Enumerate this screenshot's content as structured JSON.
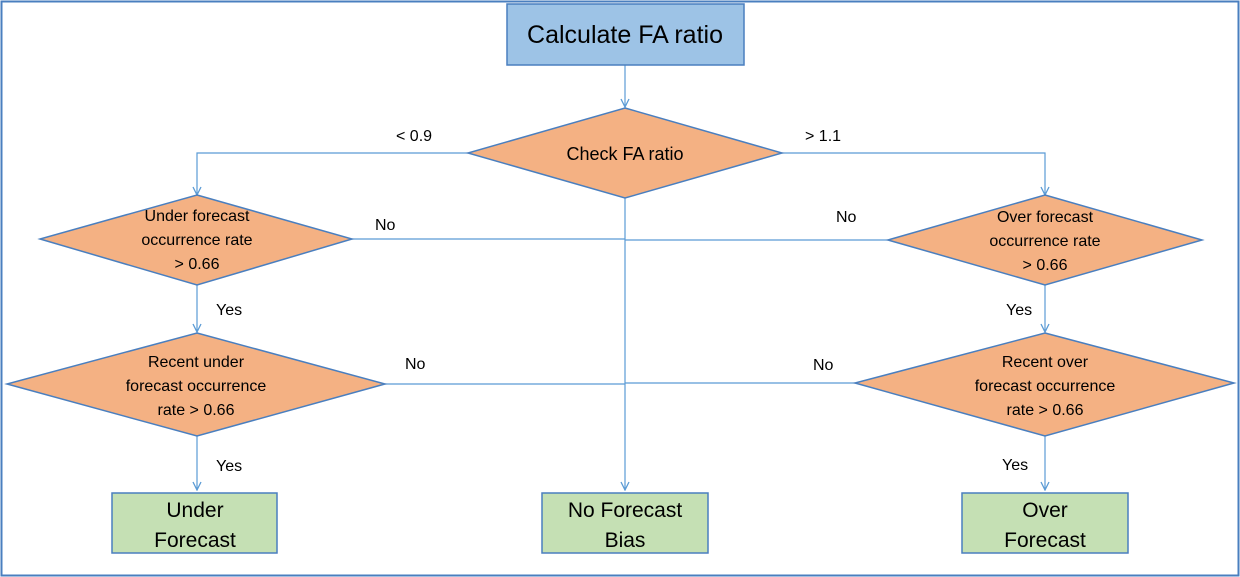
{
  "diagram": {
    "start": {
      "label": "Calculate FA ratio"
    },
    "decisions": {
      "check_ratio": {
        "label": "Check FA ratio"
      },
      "under_rate": {
        "lines": [
          "Under forecast",
          "occurrence rate",
          "> 0.66"
        ]
      },
      "over_rate": {
        "lines": [
          "Over forecast",
          "occurrence rate",
          "> 0.66"
        ]
      },
      "recent_under": {
        "lines": [
          "Recent under",
          "forecast occurrence",
          "rate > 0.66"
        ]
      },
      "recent_over": {
        "lines": [
          "Recent over",
          "forecast occurrence",
          "rate > 0.66"
        ]
      }
    },
    "outcomes": {
      "under": {
        "lines": [
          "Under",
          "Forecast"
        ]
      },
      "none": {
        "lines": [
          "No Forecast",
          "Bias"
        ]
      },
      "over": {
        "lines": [
          "Over",
          "Forecast"
        ]
      }
    },
    "edge_labels": {
      "lt": "< 0.9",
      "gt": "> 1.1",
      "no": "No",
      "yes": "Yes"
    },
    "colors": {
      "border": "#4a7fbf",
      "start_fill": "#9dc3e6",
      "decision_fill": "#f4b183",
      "outcome_fill": "#c5e0b4",
      "edge": "#5b9bd5"
    }
  }
}
